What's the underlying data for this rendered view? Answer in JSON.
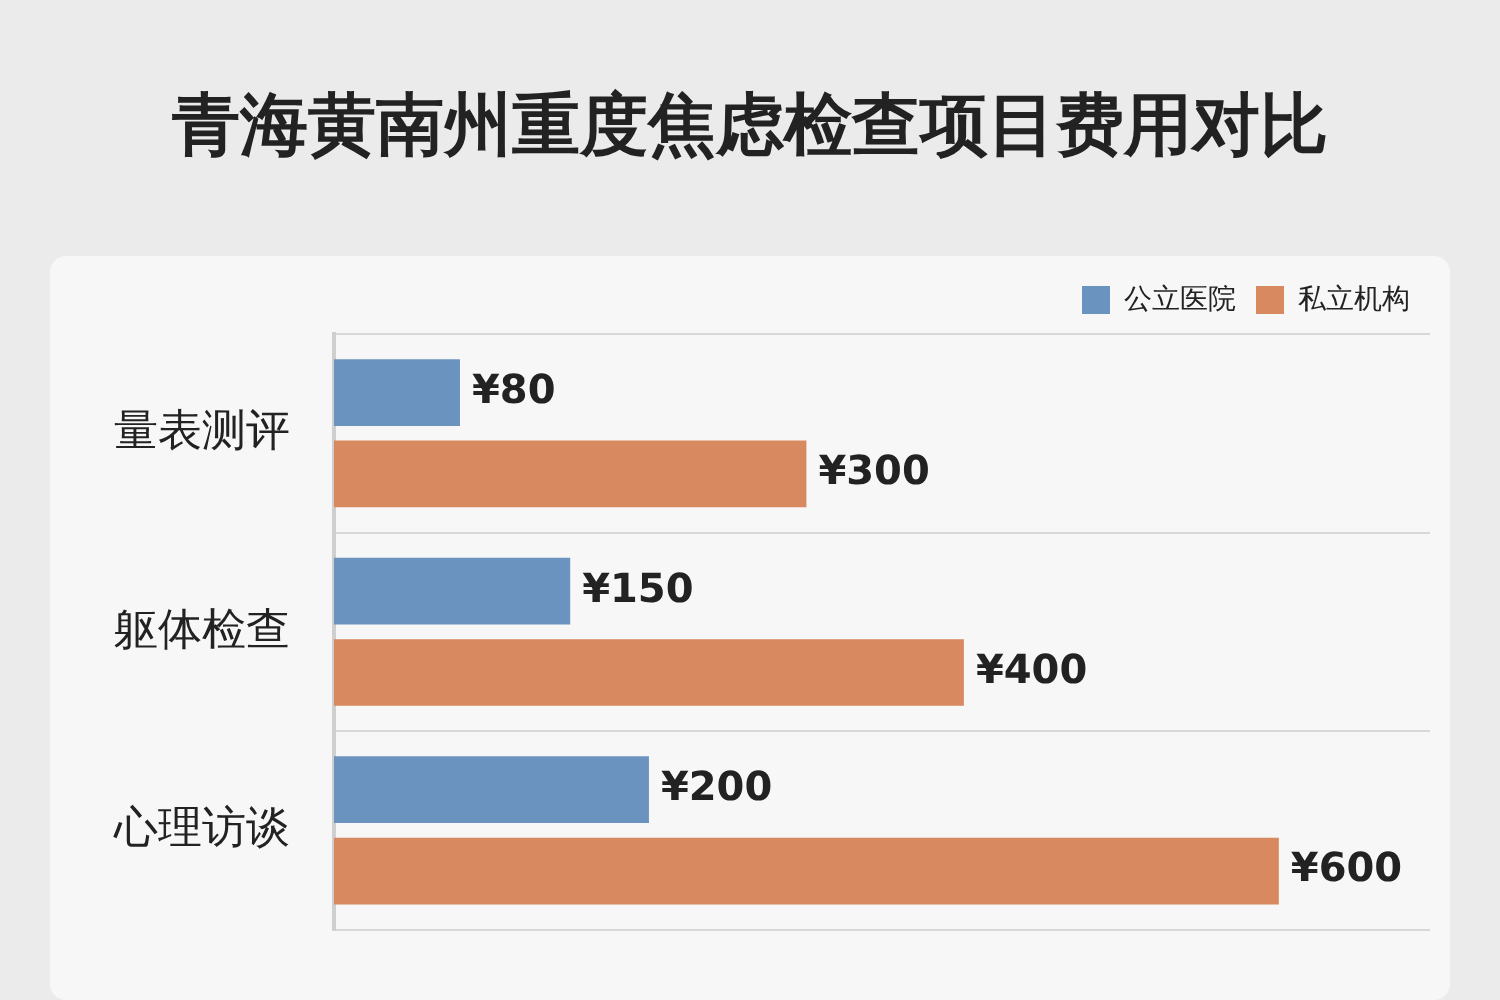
{
  "chart_data": {
    "type": "bar",
    "orientation": "horizontal",
    "title": "青海黄南州重度焦虑检查项目费用对比",
    "categories": [
      "量表测评",
      "躯体检查",
      "心理访谈"
    ],
    "series": [
      {
        "name": "公立医院",
        "color": "#6b93bf",
        "values": [
          80,
          150,
          200
        ],
        "value_labels": [
          "¥80",
          "¥150",
          "¥200"
        ]
      },
      {
        "name": "私立机构",
        "color": "#d9895f",
        "values": [
          300,
          400,
          600
        ],
        "value_labels": [
          "¥300",
          "¥400",
          "¥600"
        ]
      }
    ],
    "grid": "y",
    "legend": "top right",
    "tick_labels": "y"
  }
}
